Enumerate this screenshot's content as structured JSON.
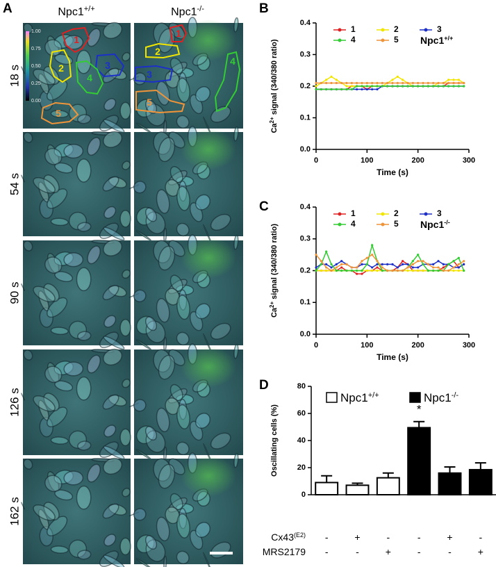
{
  "panel_a": {
    "label": "A",
    "columns": [
      {
        "base": "Npc1",
        "sup": "+/+"
      },
      {
        "base": "Npc1",
        "sup": "-/-"
      }
    ],
    "times": [
      "18 s",
      "54 s",
      "90 s",
      "126 s",
      "162 s"
    ],
    "colorbar_ticks": [
      {
        "value": 1,
        "label": "1.00"
      },
      {
        "value": 0.75,
        "label": "0.75"
      },
      {
        "value": 0.5,
        "label": "0.50"
      },
      {
        "value": 0.25,
        "label": "0.25"
      },
      {
        "value": 0,
        "label": "0.00"
      }
    ],
    "roi_labels": [
      "1",
      "2",
      "3",
      "4",
      "5"
    ]
  },
  "chart_data": [
    {
      "type": "line",
      "label": "B",
      "legend_title": {
        "base": "Npc1",
        "sup": "+/+"
      },
      "ylabel": {
        "base": "Ca",
        "sup": "2+",
        "rest": " signal (340/380 ratio)"
      },
      "xlabel": "Time (s)",
      "xlim": [
        0,
        300
      ],
      "xticks": [
        0,
        100,
        200,
        300
      ],
      "ylim": [
        0,
        0.4
      ],
      "yticks": [
        {
          "value": 0,
          "label": "0.0"
        },
        0.1,
        0.2,
        0.3,
        0.4
      ],
      "x": [
        0,
        10,
        20,
        30,
        40,
        50,
        60,
        70,
        80,
        90,
        100,
        110,
        120,
        130,
        140,
        150,
        160,
        170,
        180,
        190,
        200,
        210,
        220,
        230,
        240,
        250,
        260,
        270,
        280,
        290
      ],
      "series": [
        {
          "name": "1",
          "color": "#e02020",
          "values": [
            0.19,
            0.19,
            0.19,
            0.19,
            0.19,
            0.19,
            0.19,
            0.2,
            0.2,
            0.2,
            0.19,
            0.2,
            0.2,
            0.2,
            0.2,
            0.2,
            0.2,
            0.2,
            0.2,
            0.2,
            0.2,
            0.2,
            0.2,
            0.2,
            0.2,
            0.2,
            0.21,
            0.21,
            0.21,
            0.21
          ]
        },
        {
          "name": "2",
          "color": "#f2e600",
          "values": [
            0.2,
            0.21,
            0.22,
            0.23,
            0.22,
            0.21,
            0.2,
            0.2,
            0.2,
            0.2,
            0.2,
            0.2,
            0.2,
            0.2,
            0.21,
            0.22,
            0.23,
            0.22,
            0.21,
            0.2,
            0.2,
            0.2,
            0.2,
            0.2,
            0.21,
            0.21,
            0.22,
            0.22,
            0.22,
            0.21
          ]
        },
        {
          "name": "3",
          "color": "#1c2fc8",
          "values": [
            0.19,
            0.19,
            0.19,
            0.19,
            0.19,
            0.19,
            0.19,
            0.19,
            0.19,
            0.19,
            0.19,
            0.19,
            0.19,
            0.2,
            0.2,
            0.2,
            0.2,
            0.2,
            0.2,
            0.2,
            0.2,
            0.2,
            0.2,
            0.2,
            0.2,
            0.2,
            0.2,
            0.2,
            0.2,
            0.2
          ]
        },
        {
          "name": "4",
          "color": "#33cc33",
          "values": [
            0.19,
            0.19,
            0.19,
            0.19,
            0.19,
            0.19,
            0.19,
            0.19,
            0.2,
            0.2,
            0.2,
            0.2,
            0.2,
            0.2,
            0.2,
            0.2,
            0.2,
            0.2,
            0.2,
            0.2,
            0.2,
            0.2,
            0.2,
            0.2,
            0.2,
            0.2,
            0.2,
            0.2,
            0.2,
            0.2
          ]
        },
        {
          "name": "5",
          "color": "#f0943a",
          "values": [
            0.21,
            0.21,
            0.21,
            0.21,
            0.21,
            0.21,
            0.21,
            0.21,
            0.21,
            0.21,
            0.21,
            0.21,
            0.21,
            0.21,
            0.21,
            0.21,
            0.21,
            0.21,
            0.21,
            0.21,
            0.21,
            0.21,
            0.21,
            0.21,
            0.21,
            0.21,
            0.21,
            0.21,
            0.21,
            0.21
          ]
        }
      ]
    },
    {
      "type": "line",
      "label": "C",
      "legend_title": {
        "base": "Npc1",
        "sup": "-/-"
      },
      "ylabel": {
        "base": "Ca",
        "sup": "2+",
        "rest": " signal (340/380 ratio)"
      },
      "xlabel": "Time (s)",
      "xlim": [
        0,
        300
      ],
      "xticks": [
        0,
        100,
        200,
        300
      ],
      "ylim": [
        0,
        0.4
      ],
      "yticks": [
        {
          "value": 0,
          "label": "0.0"
        },
        0.1,
        0.2,
        0.3,
        0.4
      ],
      "x": [
        0,
        10,
        20,
        30,
        40,
        50,
        60,
        70,
        80,
        90,
        100,
        110,
        120,
        130,
        140,
        150,
        160,
        170,
        180,
        190,
        200,
        210,
        220,
        230,
        240,
        250,
        260,
        270,
        280,
        290
      ],
      "series": [
        {
          "name": "1",
          "color": "#e02020",
          "values": [
            0.2,
            0.2,
            0.2,
            0.2,
            0.2,
            0.21,
            0.2,
            0.2,
            0.19,
            0.19,
            0.2,
            0.2,
            0.21,
            0.2,
            0.2,
            0.2,
            0.21,
            0.23,
            0.22,
            0.2,
            0.2,
            0.2,
            0.2,
            0.2,
            0.2,
            0.21,
            0.22,
            0.23,
            0.21,
            0.22
          ]
        },
        {
          "name": "2",
          "color": "#f2e600",
          "values": [
            0.2,
            0.2,
            0.2,
            0.2,
            0.2,
            0.2,
            0.2,
            0.2,
            0.2,
            0.2,
            0.2,
            0.2,
            0.2,
            0.2,
            0.2,
            0.2,
            0.2,
            0.2,
            0.2,
            0.2,
            0.2,
            0.2,
            0.2,
            0.2,
            0.2,
            0.2,
            0.2,
            0.2,
            0.2,
            0.2
          ]
        },
        {
          "name": "3",
          "color": "#1c2fc8",
          "values": [
            0.21,
            0.22,
            0.22,
            0.21,
            0.22,
            0.23,
            0.22,
            0.21,
            0.21,
            0.22,
            0.22,
            0.21,
            0.22,
            0.22,
            0.22,
            0.22,
            0.21,
            0.22,
            0.22,
            0.21,
            0.21,
            0.22,
            0.22,
            0.22,
            0.23,
            0.22,
            0.22,
            0.21,
            0.21,
            0.22
          ]
        },
        {
          "name": "4",
          "color": "#33cc33",
          "values": [
            0.2,
            0.22,
            0.26,
            0.22,
            0.2,
            0.2,
            0.2,
            0.2,
            0.2,
            0.2,
            0.22,
            0.28,
            0.23,
            0.2,
            0.2,
            0.2,
            0.2,
            0.2,
            0.21,
            0.23,
            0.25,
            0.22,
            0.2,
            0.2,
            0.2,
            0.2,
            0.22,
            0.23,
            0.24,
            0.2
          ]
        },
        {
          "name": "5",
          "color": "#f0943a",
          "values": [
            0.25,
            0.23,
            0.21,
            0.2,
            0.21,
            0.22,
            0.22,
            0.21,
            0.21,
            0.23,
            0.24,
            0.25,
            0.23,
            0.21,
            0.2,
            0.2,
            0.2,
            0.2,
            0.21,
            0.22,
            0.23,
            0.23,
            0.22,
            0.21,
            0.21,
            0.2,
            0.2,
            0.21,
            0.22,
            0.23
          ]
        }
      ]
    },
    {
      "type": "bar",
      "label": "D",
      "ylabel": "Oscillating cells (%)",
      "ylim": [
        0,
        80
      ],
      "yticks": [
        0,
        20,
        40,
        60,
        80
      ],
      "series": [
        {
          "name": "Npc1",
          "name_sup": "+/+",
          "color": "#ffffff",
          "values": [
            9,
            7,
            12.5,
            null,
            null,
            null
          ],
          "errors": [
            5,
            1.5,
            3.5,
            null,
            null,
            null
          ]
        },
        {
          "name": "Npc1",
          "name_sup": "-/-",
          "color": "#000000",
          "values": [
            null,
            null,
            null,
            49.5,
            16,
            18.5
          ],
          "errors": [
            null,
            null,
            null,
            4.5,
            4.5,
            5
          ]
        }
      ],
      "annotations": [
        {
          "bar": 3,
          "text": "*"
        }
      ],
      "treatments": [
        {
          "base": "Cx43",
          "sup": "(E2)",
          "signs": [
            "-",
            "+",
            "-",
            "-",
            "+",
            "-"
          ]
        },
        {
          "base": "MRS2179",
          "signs": [
            "-",
            "-",
            "+",
            "-",
            "-",
            "+"
          ]
        }
      ]
    }
  ]
}
